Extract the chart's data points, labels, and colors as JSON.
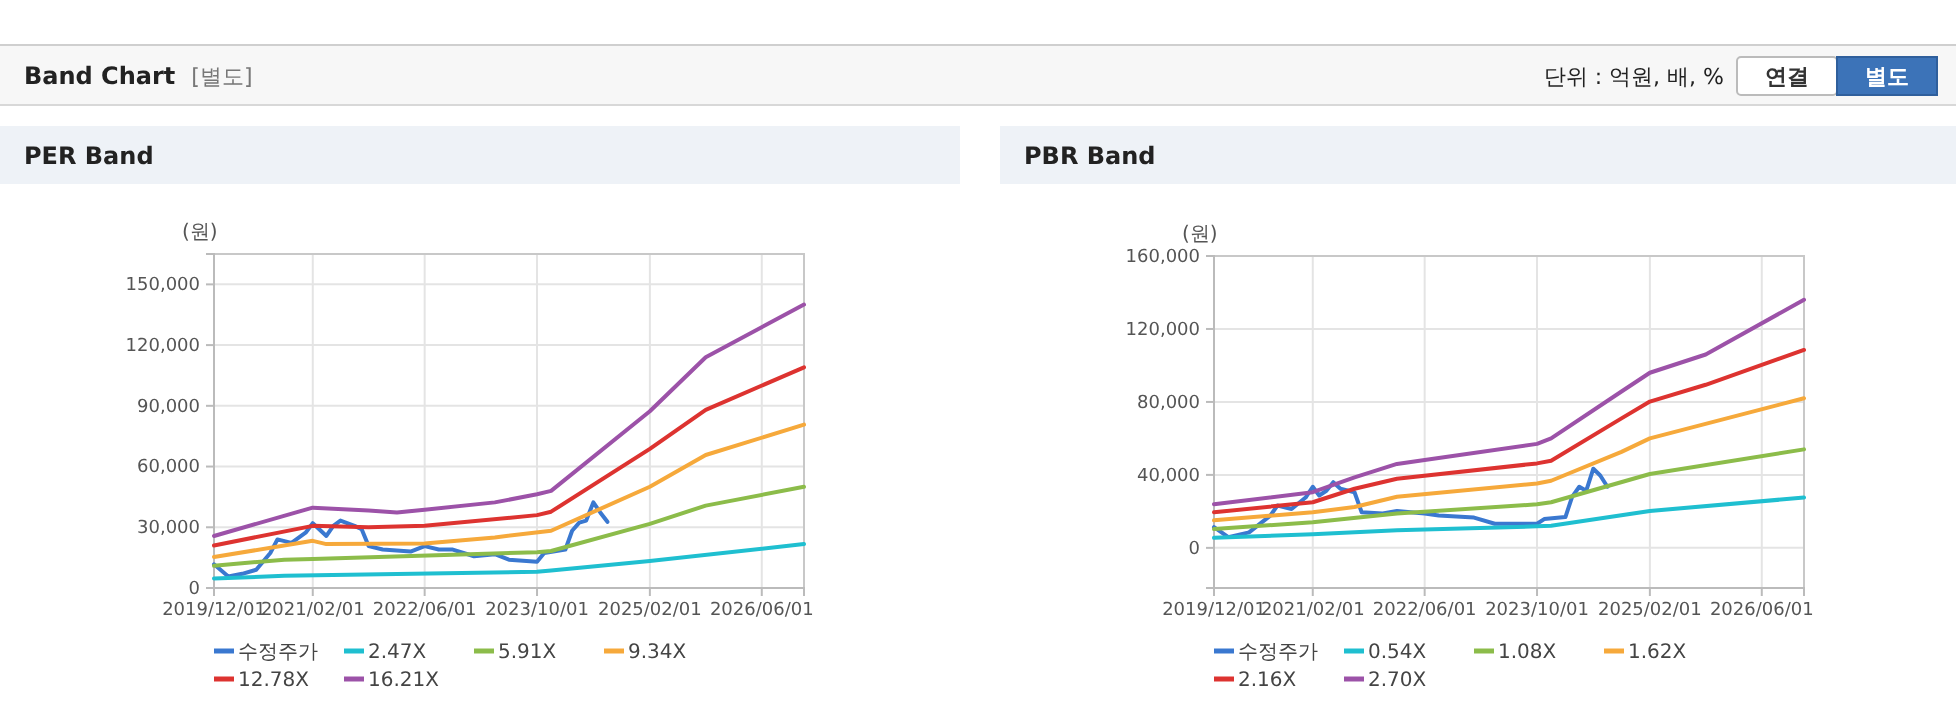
{
  "chart_data": [
    {
      "type": "other",
      "title": "Band Chart",
      "annotations": [
        "[별도]",
        "단위 : 억원, 배, %",
        "연결",
        "별도"
      ]
    },
    {
      "type": "line",
      "title": "PER Band",
      "ylabel": "(원)",
      "legend": "bottom",
      "grid": true,
      "marker": "none",
      "line_style": "solid",
      "xlim": [
        "2019-12",
        "2026-12"
      ],
      "xticks": [
        {
          "value": "2019-12-01",
          "label": "2019/12/01"
        },
        {
          "value": "2021-02-01",
          "label": "2021/02/01"
        },
        {
          "value": "2022-06-01",
          "label": "2022/06/01"
        },
        {
          "value": "2023-10-01",
          "label": "2023/10/01"
        },
        {
          "value": "2025-02-01",
          "label": "2025/02/01"
        },
        {
          "value": "2026-06-01",
          "label": "2026/06/01"
        }
      ],
      "ylim": [
        0,
        165000
      ],
      "yticks": [
        0,
        {
          "value": 30000,
          "label": "30,000"
        },
        {
          "value": 60000,
          "label": "60,000"
        },
        {
          "value": 90000,
          "label": "90,000"
        },
        {
          "value": 120000,
          "label": "120,000"
        },
        {
          "value": 150000,
          "label": "150,000"
        }
      ],
      "series": [
        {
          "name": "수정주가",
          "color": "#3a78d0",
          "x": [
            "2019-12",
            "2020-02",
            "2020-04",
            "2020-06",
            "2020-08",
            "2020-09",
            "2020-11",
            "2021-01",
            "2021-02",
            "2021-03",
            "2021-04",
            "2021-05",
            "2021-06",
            "2021-08",
            "2021-09",
            "2021-10",
            "2021-12",
            "2022-04",
            "2022-06",
            "2022-08",
            "2022-10",
            "2023-01",
            "2023-04",
            "2023-06",
            "2023-10",
            "2023-11",
            "2024-02",
            "2024-03",
            "2024-04",
            "2024-05",
            "2024-06",
            "2024-07",
            "2024-08"
          ],
          "values": [
            11700,
            5700,
            7000,
            9000,
            17300,
            24000,
            22300,
            27300,
            32000,
            29000,
            25700,
            30700,
            33300,
            30700,
            29000,
            20700,
            19000,
            18000,
            20700,
            19000,
            19000,
            15700,
            16700,
            14000,
            13000,
            17300,
            19000,
            28300,
            32300,
            33300,
            42300,
            37300,
            32700
          ]
        },
        {
          "name": "2.47X",
          "color": "#1fbfd0",
          "x": [
            "2019-12",
            "2020-10",
            "2023-10",
            "2023-12",
            "2025-02",
            "2026-12"
          ],
          "values": [
            4700,
            6000,
            8000,
            8700,
            13300,
            21700
          ]
        },
        {
          "name": "5.91X",
          "color": "#8cbc4a",
          "x": [
            "2019-12",
            "2020-10",
            "2021-02",
            "2023-10",
            "2023-12",
            "2025-02",
            "2025-10",
            "2026-12"
          ],
          "values": [
            11000,
            14000,
            14300,
            17700,
            18300,
            31700,
            40700,
            50000
          ]
        },
        {
          "name": "9.34X",
          "color": "#f6a93b",
          "x": [
            "2019-12",
            "2021-02",
            "2021-04",
            "2022-06",
            "2023-04",
            "2023-12",
            "2025-02",
            "2025-10",
            "2026-12"
          ],
          "values": [
            15300,
            23300,
            21700,
            22000,
            25000,
            28300,
            50000,
            65700,
            80700
          ]
        },
        {
          "name": "12.78X",
          "color": "#dd3330",
          "x": [
            "2019-12",
            "2021-02",
            "2021-10",
            "2022-06",
            "2023-10",
            "2023-12",
            "2025-02",
            "2025-10",
            "2026-12"
          ],
          "values": [
            21000,
            30700,
            30000,
            30700,
            36000,
            37700,
            68700,
            88000,
            109000
          ]
        },
        {
          "name": "16.21X",
          "color": "#9c52a8",
          "x": [
            "2019-12",
            "2021-02",
            "2021-10",
            "2022-02",
            "2022-06",
            "2023-04",
            "2023-10",
            "2023-12",
            "2025-02",
            "2025-10",
            "2026-12"
          ],
          "values": [
            25700,
            39700,
            38300,
            37300,
            38700,
            42300,
            46300,
            48000,
            87300,
            114000,
            140000
          ]
        }
      ]
    },
    {
      "type": "line",
      "title": "PBR Band",
      "ylabel": "(원)",
      "legend": "bottom",
      "grid": true,
      "marker": "none",
      "line_style": "solid",
      "xlim": [
        "2019-12",
        "2026-12"
      ],
      "xticks": [
        {
          "value": "2019-12-01",
          "label": "2019/12/01"
        },
        {
          "value": "2021-02-01",
          "label": "2021/02/01"
        },
        {
          "value": "2022-06-01",
          "label": "2022/06/01"
        },
        {
          "value": "2023-10-01",
          "label": "2023/10/01"
        },
        {
          "value": "2025-02-01",
          "label": "2025/02/01"
        },
        {
          "value": "2026-06-01",
          "label": "2026/06/01"
        }
      ],
      "ylim": [
        -22000,
        160000
      ],
      "yticks": [
        0,
        {
          "value": 40000,
          "label": "40,000"
        },
        {
          "value": 80000,
          "label": "80,000"
        },
        {
          "value": 120000,
          "label": "120,000"
        },
        {
          "value": 160000,
          "label": "160,000"
        }
      ],
      "series": [
        {
          "name": "수정주가",
          "color": "#3a78d0",
          "x": [
            "2019-12",
            "2020-02",
            "2020-05",
            "2020-08",
            "2020-09",
            "2020-11",
            "2021-01",
            "2021-02",
            "2021-03",
            "2021-04",
            "2021-05",
            "2021-06",
            "2021-08",
            "2021-09",
            "2021-12",
            "2022-02",
            "2022-04",
            "2022-06",
            "2022-08",
            "2023-01",
            "2023-04",
            "2023-10",
            "2023-11",
            "2024-02",
            "2024-03",
            "2024-04",
            "2024-05",
            "2024-06",
            "2024-07",
            "2024-08"
          ],
          "values": [
            11400,
            5900,
            8500,
            17700,
            23200,
            21300,
            27600,
            33500,
            28700,
            31300,
            36000,
            32400,
            30500,
            19500,
            18800,
            20200,
            19500,
            18800,
            17700,
            16600,
            13200,
            13200,
            15800,
            16900,
            28000,
            33500,
            31300,
            43400,
            39700,
            33500
          ]
        },
        {
          "name": "0.54X",
          "color": "#1fbfd0",
          "x": [
            "2019-12",
            "2021-02",
            "2022-02",
            "2023-10",
            "2023-12",
            "2025-02",
            "2026-12"
          ],
          "values": [
            5500,
            7400,
            9600,
            11800,
            12100,
            20200,
            27600
          ]
        },
        {
          "name": "1.08X",
          "color": "#8cbc4a",
          "x": [
            "2019-12",
            "2021-02",
            "2022-02",
            "2023-10",
            "2023-12",
            "2025-02",
            "2026-12"
          ],
          "values": [
            10300,
            14000,
            18800,
            23900,
            25000,
            40500,
            54000
          ]
        },
        {
          "name": "1.62X",
          "color": "#f6a93b",
          "x": [
            "2019-12",
            "2021-02",
            "2021-08",
            "2022-02",
            "2023-10",
            "2023-12",
            "2024-10",
            "2025-02",
            "2026-12"
          ],
          "values": [
            15100,
            19500,
            22400,
            28000,
            35300,
            36800,
            52600,
            60000,
            82000
          ]
        },
        {
          "name": "2.16X",
          "color": "#dd3330",
          "x": [
            "2019-12",
            "2021-02",
            "2021-08",
            "2022-02",
            "2023-10",
            "2023-12",
            "2024-10",
            "2025-02",
            "2025-10",
            "2026-12"
          ],
          "values": [
            19500,
            25000,
            32400,
            37900,
            46300,
            47800,
            71000,
            80200,
            89400,
            108500
          ]
        },
        {
          "name": "2.70X",
          "color": "#9c52a8",
          "x": [
            "2019-12",
            "2021-02",
            "2021-08",
            "2022-02",
            "2022-06",
            "2023-10",
            "2023-12",
            "2024-10",
            "2025-02",
            "2025-10",
            "2026-12"
          ],
          "values": [
            23900,
            30500,
            38600,
            46000,
            48200,
            57000,
            60000,
            85700,
            96000,
            106000,
            136000
          ]
        }
      ]
    }
  ]
}
